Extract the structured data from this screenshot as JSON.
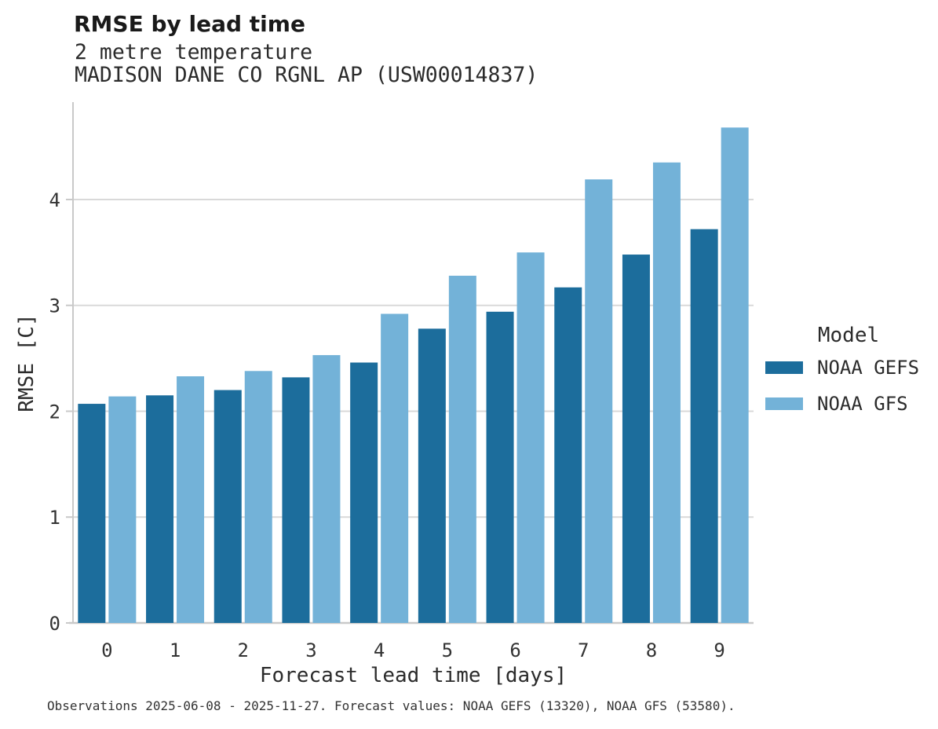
{
  "title": "RMSE by lead time",
  "subtitle_line1": "2 metre temperature",
  "subtitle_line2": "MADISON DANE CO RGNL AP (USW00014837)",
  "caption": "Observations 2025-06-08 - 2025-11-27. Forecast values: NOAA GEFS (13320), NOAA GFS (53580).",
  "colors": {
    "gefs_bar": "#1c6d9c",
    "gfs_bar": "#73b2d8",
    "gridline": "#d9d9d9",
    "axis_spine": "#c9c9c9",
    "tick_text": "#333333",
    "title_text": "#1a1a1a"
  },
  "chart_data": {
    "type": "bar",
    "title": "RMSE by lead time",
    "subtitle": [
      "2 metre temperature",
      "MADISON DANE CO RGNL AP (USW00014837)"
    ],
    "xlabel": "Forecast lead time [days]",
    "ylabel": "RMSE [C]",
    "legend_title": "Model",
    "legend_position": "right",
    "grid": true,
    "categories": [
      "0",
      "1",
      "2",
      "3",
      "4",
      "5",
      "6",
      "7",
      "8",
      "9"
    ],
    "series": [
      {
        "name": "NOAA GEFS",
        "color": "#1c6d9c",
        "values": [
          2.07,
          2.15,
          2.2,
          2.32,
          2.46,
          2.78,
          2.94,
          3.17,
          3.48,
          3.72
        ]
      },
      {
        "name": "NOAA GFS",
        "color": "#73b2d8",
        "values": [
          2.14,
          2.33,
          2.38,
          2.53,
          2.92,
          3.28,
          3.5,
          4.19,
          4.35,
          4.68
        ]
      }
    ],
    "yticks": [
      0,
      1,
      2,
      3,
      4
    ],
    "ylim": [
      0,
      4.92
    ]
  }
}
